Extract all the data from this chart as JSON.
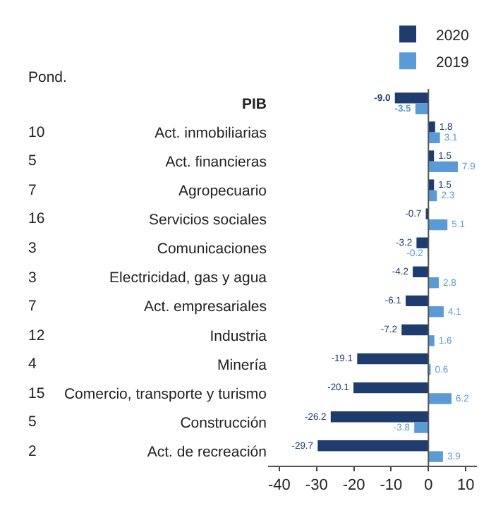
{
  "chart_data": {
    "type": "bar",
    "orientation": "horizontal",
    "categories": [
      "PIB",
      "Act. inmobiliarias",
      "Act. financieras",
      "Agropecuario",
      "Servicios sociales",
      "Comunicaciones",
      "Electricidad, gas y agua",
      "Act. empresariales",
      "Industria",
      "Minería",
      "Comercio, transporte y turismo",
      "Construcción",
      "Act. de recreación"
    ],
    "series": [
      {
        "name": "2020",
        "color": "#1f3c6e",
        "values": [
          -9.0,
          1.8,
          1.5,
          1.5,
          -0.7,
          -3.2,
          -4.2,
          -6.1,
          -7.2,
          -19.1,
          -20.1,
          -26.2,
          -29.7
        ],
        "value_labels": [
          "-9.0",
          "1.8",
          "1.5",
          "1.5",
          "-0.7",
          "-3.2",
          "-4.2",
          "-6.1",
          "-7.2",
          "-19.1",
          "-20.1",
          "-26.2",
          "-29.7"
        ]
      },
      {
        "name": "2019",
        "color": "#5b9bd5",
        "values": [
          -3.5,
          3.1,
          7.9,
          2.3,
          5.1,
          -0.2,
          2.8,
          4.1,
          1.6,
          0.6,
          6.2,
          -3.8,
          3.9
        ],
        "value_labels": [
          "-3.5",
          "3.1",
          "7.9",
          "2.3",
          "5.1",
          "-0.2",
          "2.8",
          "4.1",
          "1.6",
          "0.6",
          "6.2",
          "-3.8",
          "3.9"
        ]
      }
    ],
    "xlim": [
      -43,
      13
    ],
    "xticks": [
      -40,
      -30,
      -20,
      -10,
      0,
      10
    ],
    "grid": false,
    "legend": "top right",
    "ref_lines": [
      {
        "axis": "x",
        "value": 0,
        "color": "#555555"
      }
    ],
    "annotations": [
      "Pond.",
      "10",
      "5",
      "7",
      "16",
      "3",
      "3",
      "7",
      "12",
      "4",
      "15",
      "5",
      "2"
    ]
  }
}
